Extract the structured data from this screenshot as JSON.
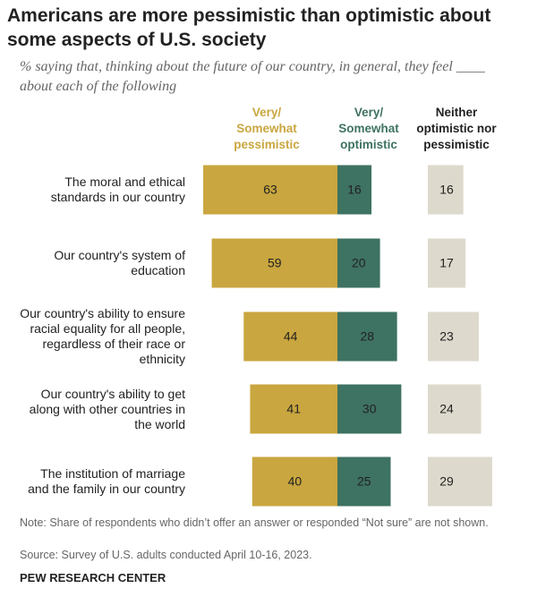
{
  "chart_data": {
    "type": "diverging-bar",
    "title": "Americans are more pessimistic than optimistic about some aspects of U.S. society",
    "subtitle": "% saying that, thinking about the future of our country, in general, they feel ____ about each of the following",
    "categories": [
      "The moral and ethical standards in our country",
      "Our country's system of education",
      "Our country's ability to ensure racial equality for all people, regardless of their race or ethnicity",
      "Our country's ability to get along with other countries in the world",
      "The institution of marriage and the family in our country"
    ],
    "series": [
      {
        "name": "Very/ Somewhat pessimistic",
        "color": "#c9a63f",
        "values": [
          63,
          59,
          44,
          41,
          40
        ]
      },
      {
        "name": "Very/ Somewhat optimistic",
        "color": "#3e7262",
        "values": [
          16,
          20,
          28,
          30,
          25
        ]
      },
      {
        "name": "Neither optimistic nor pessimistic",
        "color": "#ddd9cc",
        "values": [
          16,
          17,
          23,
          24,
          29
        ]
      }
    ],
    "note": "Note: Share of respondents who didn’t offer an answer or responded “Not sure” are not shown.",
    "source": "Source: Survey of U.S. adults conducted April 10-16, 2023.",
    "credit": "PEW RESEARCH CENTER"
  }
}
